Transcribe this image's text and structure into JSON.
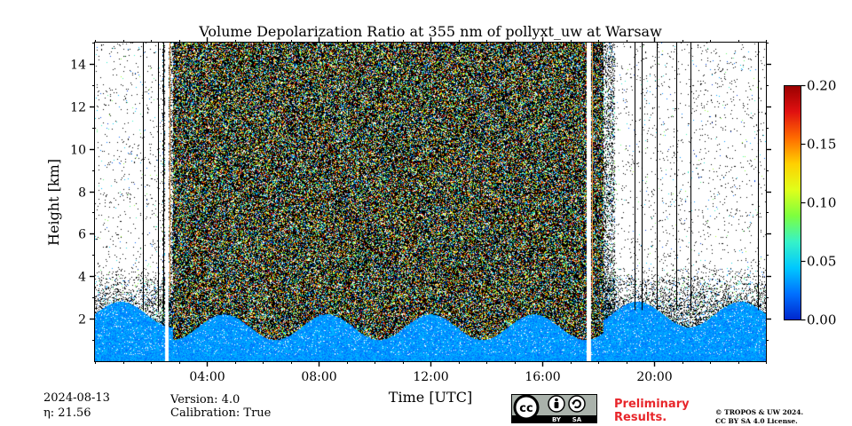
{
  "chart_data": {
    "type": "heatmap",
    "title": "Volume Depolarization Ratio at 355 nm of pollyxt_uw at Warsaw",
    "xlabel": "Time [UTC]",
    "ylabel": "Height [km]",
    "xlim_hours": [
      0,
      24
    ],
    "ylim_km": [
      0,
      15
    ],
    "x_ticks": [
      {
        "hour": 4,
        "label": "04:00"
      },
      {
        "hour": 8,
        "label": "08:00"
      },
      {
        "hour": 12,
        "label": "12:00"
      },
      {
        "hour": 16,
        "label": "16:00"
      },
      {
        "hour": 20,
        "label": "20:00"
      }
    ],
    "y_ticks": [
      {
        "km": 2,
        "label": "2"
      },
      {
        "km": 4,
        "label": "4"
      },
      {
        "km": 6,
        "label": "6"
      },
      {
        "km": 8,
        "label": "8"
      },
      {
        "km": 10,
        "label": "10"
      },
      {
        "km": 12,
        "label": "12"
      },
      {
        "km": 14,
        "label": "14"
      }
    ],
    "colorbar": {
      "min": 0.0,
      "max": 0.2,
      "ticks": [
        "0.00",
        "0.05",
        "0.10",
        "0.15",
        "0.20"
      ],
      "colormap": "jet",
      "colors": [
        "#0026cc",
        "#0070ff",
        "#00c8ff",
        "#36f2c8",
        "#7dff3e",
        "#e0ff1a",
        "#ffd000",
        "#ff6a00",
        "#e01010",
        "#9a0000"
      ]
    },
    "data_gaps_hours": [
      [
        2.5,
        2.65
      ],
      [
        17.6,
        17.75
      ]
    ],
    "vertical_profile_lines_hours": [
      1.7,
      2.25,
      2.45,
      19.3,
      19.55,
      20.1,
      20.8,
      21.3,
      23.7
    ],
    "regions": [
      {
        "from_hour": 0.0,
        "to_hour": 2.8,
        "description": "sparse noise above 3 km, dense low-depol layer below 2.5 km"
      },
      {
        "from_hour": 2.8,
        "to_hour": 18.2,
        "description": "dense noisy depolarization signal up to 15 km, boundary layer below 2 km"
      },
      {
        "from_hour": 18.2,
        "to_hour": 24.0,
        "description": "sparse noise above 3 km, dense low-depol layer below 2.5 km"
      }
    ]
  },
  "info": {
    "date": "2024-08-13",
    "eta": "η: 21.56",
    "version": "Version: 4.0",
    "calibration": "Calibration: True"
  },
  "preliminary": [
    "Preliminary",
    "Results."
  ],
  "license": [
    "© TROPOS & UW 2024.",
    "CC BY SA 4.0 License."
  ],
  "cc_badge": {
    "cc": "cc",
    "by": "BY",
    "sa": "SA"
  }
}
